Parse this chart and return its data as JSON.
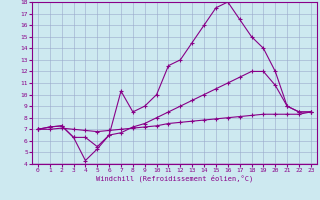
{
  "xlabel": "Windchill (Refroidissement éolien,°C)",
  "bg_color": "#cde9f0",
  "line_color": "#880088",
  "grid_color": "#99aacc",
  "xlim": [
    -0.5,
    23.5
  ],
  "ylim": [
    4,
    18
  ],
  "yticks": [
    4,
    5,
    6,
    7,
    8,
    9,
    10,
    11,
    12,
    13,
    14,
    15,
    16,
    17,
    18
  ],
  "xticks": [
    0,
    1,
    2,
    3,
    4,
    5,
    6,
    7,
    8,
    9,
    10,
    11,
    12,
    13,
    14,
    15,
    16,
    17,
    18,
    19,
    20,
    21,
    22,
    23
  ],
  "line1_x": [
    0,
    1,
    2,
    3,
    4,
    5,
    6,
    7,
    8,
    9,
    10,
    11,
    12,
    13,
    14,
    15,
    16,
    17,
    18,
    19,
    20,
    21,
    22,
    23
  ],
  "line1_y": [
    7.0,
    7.2,
    7.3,
    6.3,
    4.3,
    5.3,
    6.5,
    10.3,
    8.5,
    9.0,
    10.0,
    12.5,
    13.0,
    14.5,
    16.0,
    17.5,
    18.0,
    16.5,
    15.0,
    14.0,
    12.0,
    9.0,
    8.5,
    8.5
  ],
  "line2_x": [
    0,
    1,
    2,
    3,
    4,
    5,
    6,
    7,
    8,
    9,
    10,
    11,
    12,
    13,
    14,
    15,
    16,
    17,
    18,
    19,
    20,
    21,
    22,
    23
  ],
  "line2_y": [
    7.0,
    7.2,
    7.3,
    6.3,
    6.3,
    5.5,
    6.5,
    6.7,
    7.2,
    7.5,
    8.0,
    8.5,
    9.0,
    9.5,
    10.0,
    10.5,
    11.0,
    11.5,
    12.0,
    12.0,
    10.8,
    9.0,
    8.5,
    8.5
  ],
  "line3_x": [
    0,
    1,
    2,
    3,
    4,
    5,
    6,
    7,
    8,
    9,
    10,
    11,
    12,
    13,
    14,
    15,
    16,
    17,
    18,
    19,
    20,
    21,
    22,
    23
  ],
  "line3_y": [
    7.0,
    7.0,
    7.1,
    7.0,
    6.9,
    6.8,
    6.9,
    7.0,
    7.1,
    7.2,
    7.3,
    7.5,
    7.6,
    7.7,
    7.8,
    7.9,
    8.0,
    8.1,
    8.2,
    8.3,
    8.3,
    8.3,
    8.3,
    8.5
  ]
}
